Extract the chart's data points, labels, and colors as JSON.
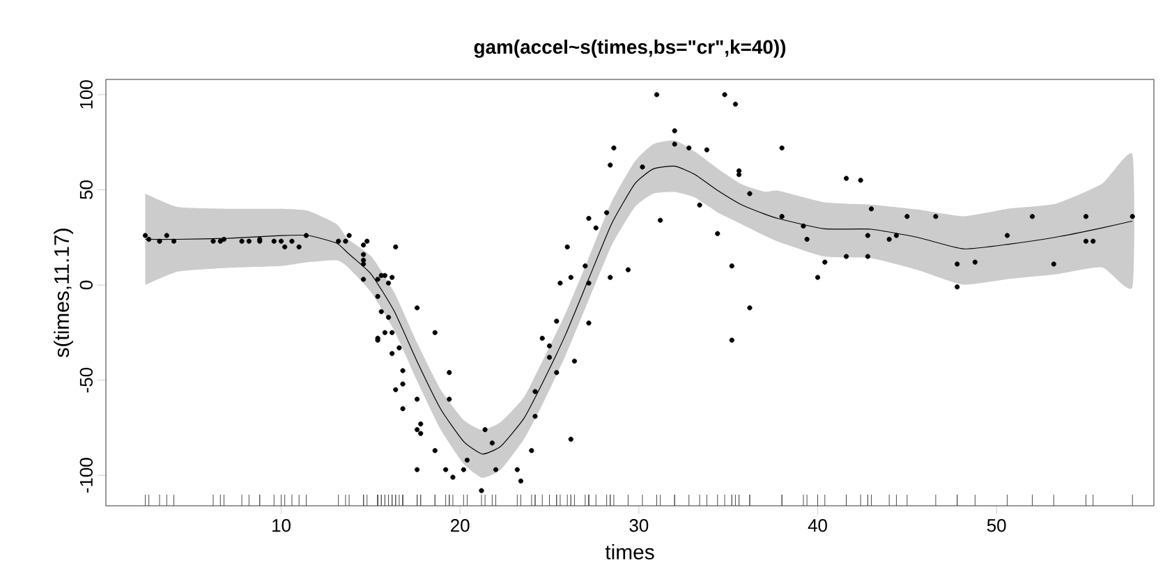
{
  "chart_data": {
    "type": "scatter",
    "title": "gam(accel~s(times,bs=\"cr\",k=40))",
    "xlabel": "times",
    "ylabel": "s(times,11.17)",
    "xlim": [
      0.2,
      58.8
    ],
    "ylim": [
      -116,
      108
    ],
    "xticks": [
      10,
      20,
      30,
      40,
      50
    ],
    "yticks": [
      -100,
      -50,
      0,
      50,
      100
    ],
    "series": [
      {
        "type": "line",
        "color": "#000000",
        "line_style": "solid",
        "x": [
          2.4,
          4.2,
          7,
          10,
          11.5,
          13.1,
          13.75,
          15.04,
          16.33,
          17.63,
          18.92,
          20.21,
          21.25,
          22.28,
          23.57,
          24.61,
          25.9,
          27.19,
          28.49,
          29.78,
          30.81,
          32.03,
          33.14,
          34.43,
          35.73,
          37.02,
          37.8,
          40.38,
          42.97,
          45.55,
          48.14,
          50.73,
          53.31,
          55.9,
          57.6
        ],
        "values": [
          24,
          24,
          24.5,
          26,
          26,
          22,
          16.6,
          5.6,
          -13.9,
          -40.8,
          -65.2,
          -82.3,
          -88.8,
          -84.7,
          -70.1,
          -51.5,
          -26.1,
          3.1,
          32.4,
          53.2,
          61,
          62.4,
          58,
          49.5,
          42.2,
          37.3,
          34.9,
          29.5,
          29.3,
          25.1,
          19,
          21.5,
          25.1,
          30,
          33.6
        ],
        "lower": [
          0,
          7,
          9,
          10,
          12,
          13,
          9.2,
          -4,
          -24,
          -51,
          -76,
          -94,
          -101.3,
          -97,
          -81,
          -62.7,
          -37,
          -8,
          21,
          41,
          48,
          48.8,
          46,
          38,
          32,
          26,
          22.7,
          14.9,
          14.1,
          8,
          0.2,
          3.2,
          5.6,
          9.3,
          -1
        ],
        "upper": [
          48,
          41,
          40,
          40,
          39,
          32,
          24,
          15,
          -4,
          -31,
          -55,
          -71,
          -76.2,
          -72,
          -59,
          -40,
          -15,
          14,
          44,
          65,
          74,
          75.9,
          70,
          61,
          53,
          49,
          49.5,
          43.4,
          42.2,
          39.7,
          36.1,
          40.2,
          42.7,
          53.2,
          68.5
        ]
      },
      {
        "color": "#000000",
        "marker": "circle",
        "x": [
          2.4,
          2.6,
          3.2,
          3.6,
          4.0,
          6.2,
          6.6,
          6.8,
          7.8,
          8.2,
          8.8,
          8.8,
          9.6,
          10.0,
          10.2,
          10.6,
          11.0,
          11.4,
          13.2,
          13.6,
          13.8,
          14.6,
          14.8,
          14.6,
          14.6,
          14.6,
          14.6,
          16.4,
          15.4,
          15.6,
          15.8,
          16.2,
          16.0,
          15.4,
          15.6,
          16.0,
          15.4,
          15.4,
          15.8,
          16.2,
          16.2,
          16.6,
          16.8,
          16.8,
          16.4,
          16.8,
          17.6,
          18.6,
          17.6,
          17.6,
          17.8,
          17.8,
          19.4,
          19.4,
          18.6,
          17.6,
          19.2,
          19.6,
          20.2,
          20.4,
          21.2,
          21.4,
          21.8,
          22.0,
          23.2,
          23.4,
          24.0,
          24.2,
          24.2,
          24.6,
          25.0,
          25.0,
          25.4,
          25.4,
          25.6,
          26.0,
          26.2,
          26.4,
          26.2,
          27.0,
          27.2,
          27.2,
          27.2,
          27.6,
          28.2,
          28.4,
          28.6,
          28.4,
          29.4,
          30.2,
          31.0,
          31.2,
          32.0,
          32.0,
          32.8,
          33.4,
          33.8,
          34.4,
          34.8,
          35.2,
          35.2,
          35.4,
          35.6,
          35.6,
          36.2,
          36.2,
          38.0,
          38.0,
          39.2,
          39.4,
          40.0,
          40.4,
          41.6,
          41.6,
          42.4,
          42.8,
          42.8,
          43.0,
          44.0,
          44.4,
          45.0,
          46.6,
          47.8,
          47.8,
          48.8,
          50.6,
          52.0,
          53.2,
          55.0,
          55.0,
          55.4,
          57.6
        ],
        "values": [
          26,
          24,
          23,
          26,
          23,
          23,
          23,
          24,
          23,
          23,
          24,
          23,
          23,
          23,
          20,
          23,
          20,
          26,
          23,
          23,
          26,
          21,
          23,
          16,
          13,
          11,
          3,
          20,
          3,
          5,
          5,
          4,
          1,
          -6,
          -14,
          -17,
          -28,
          -29,
          -25,
          -25,
          -36,
          -33,
          -45,
          -52,
          -55,
          -65,
          -12,
          -25,
          -60,
          -76,
          -73,
          -78,
          -46,
          -60,
          -87,
          -97,
          -97,
          -101,
          -97,
          -92,
          -108,
          -76,
          -83,
          -97,
          -97,
          -103,
          -87,
          -69,
          -56,
          -28,
          -32,
          -38,
          -19,
          -46,
          1,
          20,
          4,
          -40,
          -81,
          10,
          1,
          35,
          -20,
          30,
          38,
          63,
          72,
          4,
          8,
          62,
          100,
          34,
          81,
          74,
          72,
          42,
          71,
          27,
          100,
          10,
          -29,
          95,
          60,
          58,
          48,
          -12,
          72,
          36,
          31,
          24,
          4,
          12,
          56,
          15,
          55,
          26,
          15,
          40,
          24,
          26,
          36,
          36,
          11,
          -1,
          12,
          26,
          36,
          11,
          36,
          23,
          23,
          36
        ]
      }
    ]
  }
}
